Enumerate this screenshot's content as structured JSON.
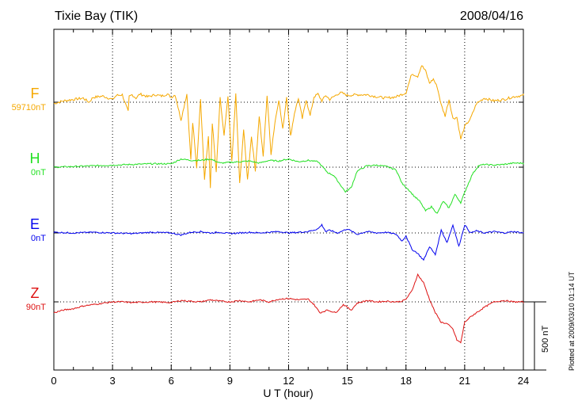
{
  "chart_data": {
    "type": "line",
    "title": "Tixie Bay (TIK)",
    "date": "2008/04/16",
    "xlabel": "U T (hour)",
    "xlim": [
      0,
      24
    ],
    "xticks": [
      0,
      3,
      6,
      9,
      12,
      15,
      18,
      21,
      24
    ],
    "scale_bar": {
      "value": 500,
      "label": "500 nT"
    },
    "plotted_note": "Plotted at 2009/03/10 01:14 UT",
    "grid": true,
    "series": [
      {
        "name": "F",
        "baseline_label": "59710nT",
        "color": "#f5a800",
        "x": [
          0,
          0.5,
          1,
          1.5,
          1.8,
          2,
          2.5,
          3,
          3.2,
          3.5,
          3.8,
          3.85,
          4,
          4.2,
          4.4,
          4.8,
          5.2,
          5.5,
          5.8,
          6,
          6.2,
          6.5,
          6.8,
          7,
          7.1,
          7.3,
          7.5,
          7.7,
          7.9,
          8,
          8.1,
          8.3,
          8.5,
          8.7,
          8.9,
          9.1,
          9.3,
          9.5,
          9.7,
          9.9,
          10.1,
          10.3,
          10.5,
          10.7,
          10.9,
          11.1,
          11.3,
          11.5,
          11.7,
          11.9,
          12.1,
          12.3,
          12.5,
          12.7,
          12.9,
          13.1,
          13.3,
          13.5,
          13.7,
          13.9,
          14.1,
          14.3,
          14.5,
          14.7,
          15,
          15.5,
          16,
          16.5,
          17,
          17.5,
          18,
          18.3,
          18.6,
          18.8,
          19,
          19.2,
          19.4,
          19.6,
          19.8,
          20,
          20.2,
          20.4,
          20.6,
          20.8,
          21,
          21.3,
          21.6,
          22,
          22.5,
          23,
          23.5,
          24
        ],
        "values": [
          -10,
          10,
          20,
          30,
          0,
          35,
          45,
          20,
          50,
          55,
          -70,
          40,
          55,
          30,
          60,
          40,
          55,
          45,
          60,
          35,
          55,
          -130,
          60,
          -420,
          -150,
          -480,
          30,
          -560,
          -250,
          -630,
          -150,
          -520,
          30,
          -250,
          40,
          -440,
          60,
          -600,
          -200,
          -570,
          -250,
          -500,
          -100,
          -400,
          50,
          -380,
          -150,
          20,
          -200,
          40,
          -250,
          -80,
          30,
          -120,
          20,
          -100,
          40,
          60,
          10,
          50,
          20,
          40,
          60,
          70,
          50,
          55,
          55,
          40,
          30,
          40,
          70,
          210,
          190,
          270,
          230,
          140,
          170,
          110,
          -20,
          -100,
          20,
          -120,
          -110,
          -270,
          -180,
          -120,
          -10,
          30,
          10,
          20,
          40,
          50
        ]
      },
      {
        "name": "H",
        "baseline_label": "0nT",
        "color": "#22e022",
        "x": [
          0,
          1,
          2,
          3,
          4,
          5,
          6,
          6.5,
          7,
          7.5,
          8,
          8.5,
          9,
          9.5,
          10,
          10.5,
          11,
          11.5,
          12,
          12.5,
          13,
          13.5,
          14,
          14.3,
          14.6,
          14.9,
          15.2,
          15.5,
          16,
          16.5,
          17,
          17.5,
          17.8,
          18.1,
          18.4,
          18.7,
          19,
          19.3,
          19.6,
          19.9,
          20.2,
          20.5,
          20.8,
          21.1,
          21.4,
          21.7,
          22,
          22.5,
          23,
          23.5,
          24
        ],
        "values": [
          0,
          5,
          10,
          15,
          20,
          25,
          25,
          60,
          50,
          50,
          60,
          30,
          35,
          40,
          45,
          30,
          50,
          45,
          60,
          40,
          50,
          40,
          -40,
          -60,
          -120,
          -180,
          -150,
          -30,
          10,
          15,
          5,
          -20,
          -120,
          -160,
          -210,
          -250,
          -320,
          -290,
          -340,
          -250,
          -300,
          -200,
          -260,
          -150,
          -50,
          10,
          20,
          15,
          20,
          30,
          30
        ]
      },
      {
        "name": "E",
        "baseline_label": "0nT",
        "color": "#0000ee",
        "x": [
          0,
          1,
          2,
          3,
          4,
          5,
          6,
          6.5,
          7,
          7.5,
          8,
          8.5,
          9,
          9.5,
          10,
          10.5,
          11,
          11.5,
          12,
          12.5,
          13,
          13.5,
          13.7,
          13.9,
          14.1,
          14.5,
          15,
          15.5,
          16,
          16.5,
          17,
          17.5,
          17.8,
          18,
          18.3,
          18.6,
          18.9,
          19.2,
          19.5,
          19.8,
          20.1,
          20.4,
          20.7,
          21,
          21.3,
          21.6,
          22,
          22.5,
          23,
          23.5,
          24
        ],
        "values": [
          5,
          0,
          5,
          0,
          -5,
          5,
          0,
          -15,
          5,
          10,
          0,
          5,
          -5,
          0,
          5,
          0,
          5,
          10,
          0,
          5,
          10,
          30,
          60,
          10,
          20,
          0,
          30,
          -10,
          10,
          0,
          5,
          -10,
          -60,
          -20,
          -120,
          -150,
          -200,
          -100,
          -160,
          20,
          -70,
          60,
          -100,
          60,
          0,
          15,
          0,
          10,
          0,
          10,
          0
        ]
      },
      {
        "name": "Z",
        "baseline_label": "90nT",
        "color": "#dd1111",
        "x": [
          0,
          0.5,
          1,
          1.5,
          2,
          2.5,
          3,
          3.5,
          4,
          5,
          6,
          6.5,
          7,
          7.5,
          8,
          8.5,
          9,
          9.5,
          10,
          10.5,
          11,
          11.5,
          12,
          12.5,
          13,
          13.3,
          13.6,
          14,
          14.4,
          14.8,
          15.2,
          15.5,
          16,
          16.5,
          17,
          17.5,
          17.8,
          18,
          18.3,
          18.6,
          18.9,
          19.2,
          19.5,
          19.8,
          20.1,
          20.4,
          20.6,
          20.8,
          21,
          21.3,
          21.6,
          22,
          22.5,
          23,
          23.5,
          24
        ],
        "values": [
          -80,
          -60,
          -50,
          -30,
          -20,
          -10,
          0,
          0,
          -5,
          0,
          -5,
          10,
          5,
          0,
          15,
          5,
          0,
          10,
          0,
          15,
          0,
          20,
          25,
          15,
          20,
          -20,
          -80,
          -60,
          -80,
          -20,
          -60,
          -10,
          10,
          0,
          5,
          0,
          5,
          20,
          80,
          200,
          140,
          20,
          -80,
          -150,
          -160,
          -200,
          -280,
          -300,
          -150,
          -110,
          -80,
          -40,
          0,
          10,
          0,
          0
        ]
      }
    ]
  }
}
